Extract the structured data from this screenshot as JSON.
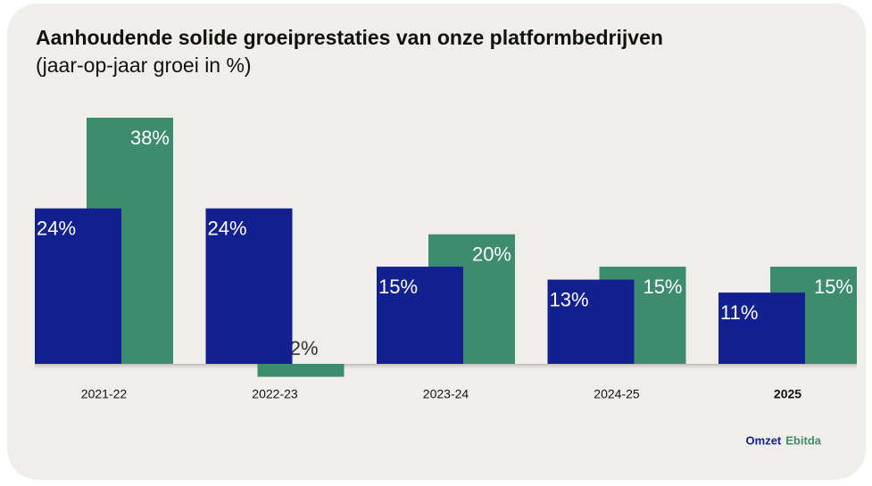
{
  "chart_data": {
    "type": "bar",
    "title": "Aanhoudende solide groeiprestaties van onze platformbedrijven",
    "subtitle": "(jaar-op-jaar groei in %)",
    "categories": [
      "2021-22",
      "2022-23",
      "2023-24",
      "2024-25",
      "2025"
    ],
    "series": [
      {
        "name": "Omzet",
        "color": "#13208f",
        "values": [
          24,
          24,
          15,
          13,
          11
        ],
        "value_labels": [
          "24%",
          "24%",
          "15%",
          "13%",
          "11%"
        ]
      },
      {
        "name": "Ebitda",
        "color": "#3e8c6f",
        "values": [
          38,
          -2,
          20,
          15,
          15
        ],
        "value_labels": [
          "38%",
          "-2%",
          "20%",
          "15%",
          "15%"
        ]
      }
    ]
  }
}
